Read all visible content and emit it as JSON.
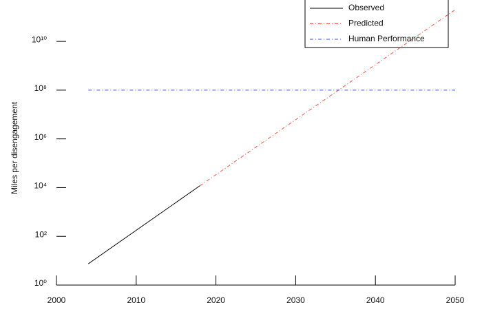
{
  "chart_data": {
    "type": "line",
    "ylabel": "Miles per disengagement",
    "xlim": [
      2000,
      2050
    ],
    "xticks": [
      2000,
      2010,
      2020,
      2030,
      2040,
      2050
    ],
    "ylim": [
      1,
      500000000000
    ],
    "ylog": true,
    "yticks": [
      {
        "value": 1,
        "label": "10⁰"
      },
      {
        "value": 100,
        "label": "10²"
      },
      {
        "value": 10000,
        "label": "10⁴"
      },
      {
        "value": 1000000,
        "label": "10⁶"
      },
      {
        "value": 100000000,
        "label": "10⁸"
      },
      {
        "value": 10000000000,
        "label": "10¹⁰"
      }
    ],
    "legend": "upper right",
    "series": [
      {
        "name": "Observed",
        "color": "#000000",
        "dash": "solid",
        "x": [
          2004,
          2018
        ],
        "values": [
          7.5,
          12000
        ]
      },
      {
        "name": "Predicted",
        "color": "#ee5544",
        "dash": "dashdot",
        "x": [
          2018,
          2050
        ],
        "values": [
          12000,
          200000000000
        ]
      },
      {
        "name": "Human Performance",
        "color": "#3355dd",
        "dash": "dashdot",
        "x": [
          2004,
          2050
        ],
        "values": [
          100000000,
          100000000
        ]
      }
    ]
  }
}
